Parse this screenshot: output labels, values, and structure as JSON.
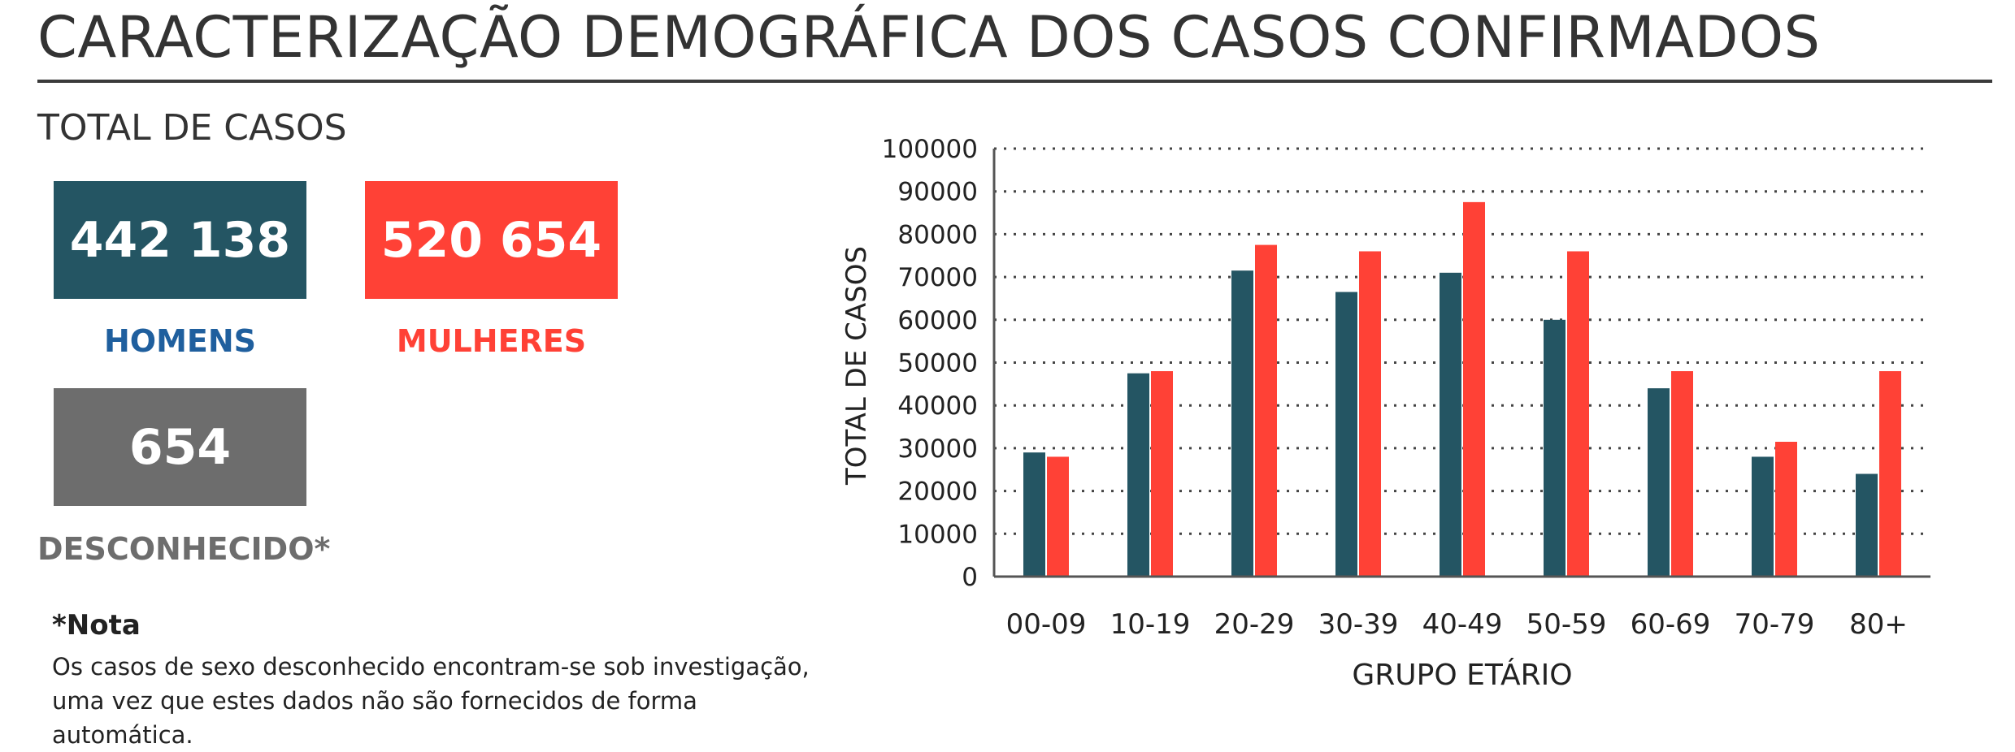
{
  "header": {
    "title": "CARACTERIZAÇÃO DEMOGRÁFICA DOS CASOS CONFIRMADOS"
  },
  "totals": {
    "section_title": "TOTAL DE CASOS",
    "men": {
      "value": "442 138",
      "label": "HOMENS",
      "box_color": "#245563",
      "label_color": "#1f5f9e"
    },
    "women": {
      "value": "520 654",
      "label": "MULHERES",
      "box_color": "#ff4136",
      "label_color": "#ff4136"
    },
    "unknown": {
      "value": "654",
      "label": "DESCONHECIDO*",
      "box_color": "#6d6d6d",
      "label_color": "#6d6d6d"
    }
  },
  "note": {
    "heading": "*Nota",
    "line1": "Os casos de sexo desconhecido encontram-se sob investigação,",
    "line2": "uma vez que estes dados não são fornecidos de forma automática."
  },
  "chart_data": {
    "type": "bar",
    "categories": [
      "00-09",
      "10-19",
      "20-29",
      "30-39",
      "40-49",
      "50-59",
      "60-69",
      "70-79",
      "80+"
    ],
    "series": [
      {
        "color": "#245563",
        "values": [
          29000,
          47500,
          71500,
          66500,
          71000,
          60000,
          44000,
          28000,
          24000
        ]
      },
      {
        "color": "#ff4136",
        "values": [
          28000,
          48000,
          77500,
          76000,
          87500,
          76000,
          48000,
          31500,
          48000
        ]
      }
    ],
    "ylim": [
      0,
      100000
    ],
    "yticks": [
      "0",
      "10000",
      "20000",
      "30000",
      "40000",
      "50000",
      "60000",
      "70000",
      "80000",
      "90000",
      "100000"
    ],
    "xlabel": "GRUPO ETÁRIO",
    "ylabel": "TOTAL DE CASOS",
    "grid": "dotted-horizontal",
    "legend": "none"
  }
}
